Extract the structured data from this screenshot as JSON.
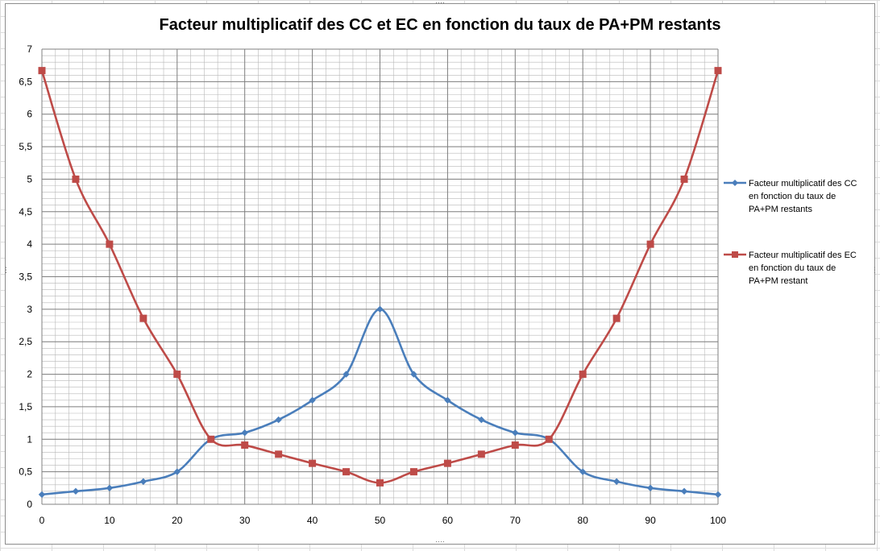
{
  "chart_data": {
    "type": "line",
    "title": "Facteur multiplicatif des CC et EC en fonction du taux de PA+PM restants",
    "xlabel": "",
    "ylabel": "",
    "x": [
      0,
      5,
      10,
      15,
      20,
      25,
      30,
      35,
      40,
      45,
      50,
      55,
      60,
      65,
      70,
      75,
      80,
      85,
      90,
      95,
      100
    ],
    "x_ticks": [
      "0",
      "10",
      "20",
      "30",
      "40",
      "50",
      "60",
      "70",
      "80",
      "90",
      "100"
    ],
    "y_ticks": [
      "0",
      "0,5",
      "1",
      "1,5",
      "2",
      "2,5",
      "3",
      "3,5",
      "4",
      "4,5",
      "5",
      "5,5",
      "6",
      "6,5",
      "7"
    ],
    "xlim": [
      0,
      100
    ],
    "ylim": [
      0,
      7
    ],
    "grid": true,
    "smooth": true,
    "legend_position": "right",
    "series": [
      {
        "name": "Facteur multiplicatif  des CC en fonction du taux de PA+PM restants",
        "legend_lines": [
          "Facteur multiplicatif  des CC",
          "en fonction du taux de",
          "PA+PM restants"
        ],
        "color": "#4a7ebb",
        "marker": "diamond",
        "values": [
          0.15,
          0.2,
          0.25,
          0.35,
          0.5,
          1.0,
          1.1,
          1.3,
          1.6,
          2.0,
          3.0,
          2.0,
          1.6,
          1.3,
          1.1,
          1.0,
          0.5,
          0.35,
          0.25,
          0.2,
          0.15
        ]
      },
      {
        "name": "Facteur multiplicatif  des EC en fonction du taux de PA+PM restant",
        "legend_lines": [
          "Facteur multiplicatif  des EC",
          "en fonction du taux de",
          "PA+PM restant"
        ],
        "color": "#be4b48",
        "marker": "square",
        "values": [
          6.67,
          5.0,
          4.0,
          2.86,
          2.0,
          1.0,
          0.91,
          0.77,
          0.63,
          0.5,
          0.33,
          0.5,
          0.63,
          0.77,
          0.91,
          1.0,
          2.0,
          2.86,
          4.0,
          5.0,
          6.67
        ]
      }
    ]
  }
}
